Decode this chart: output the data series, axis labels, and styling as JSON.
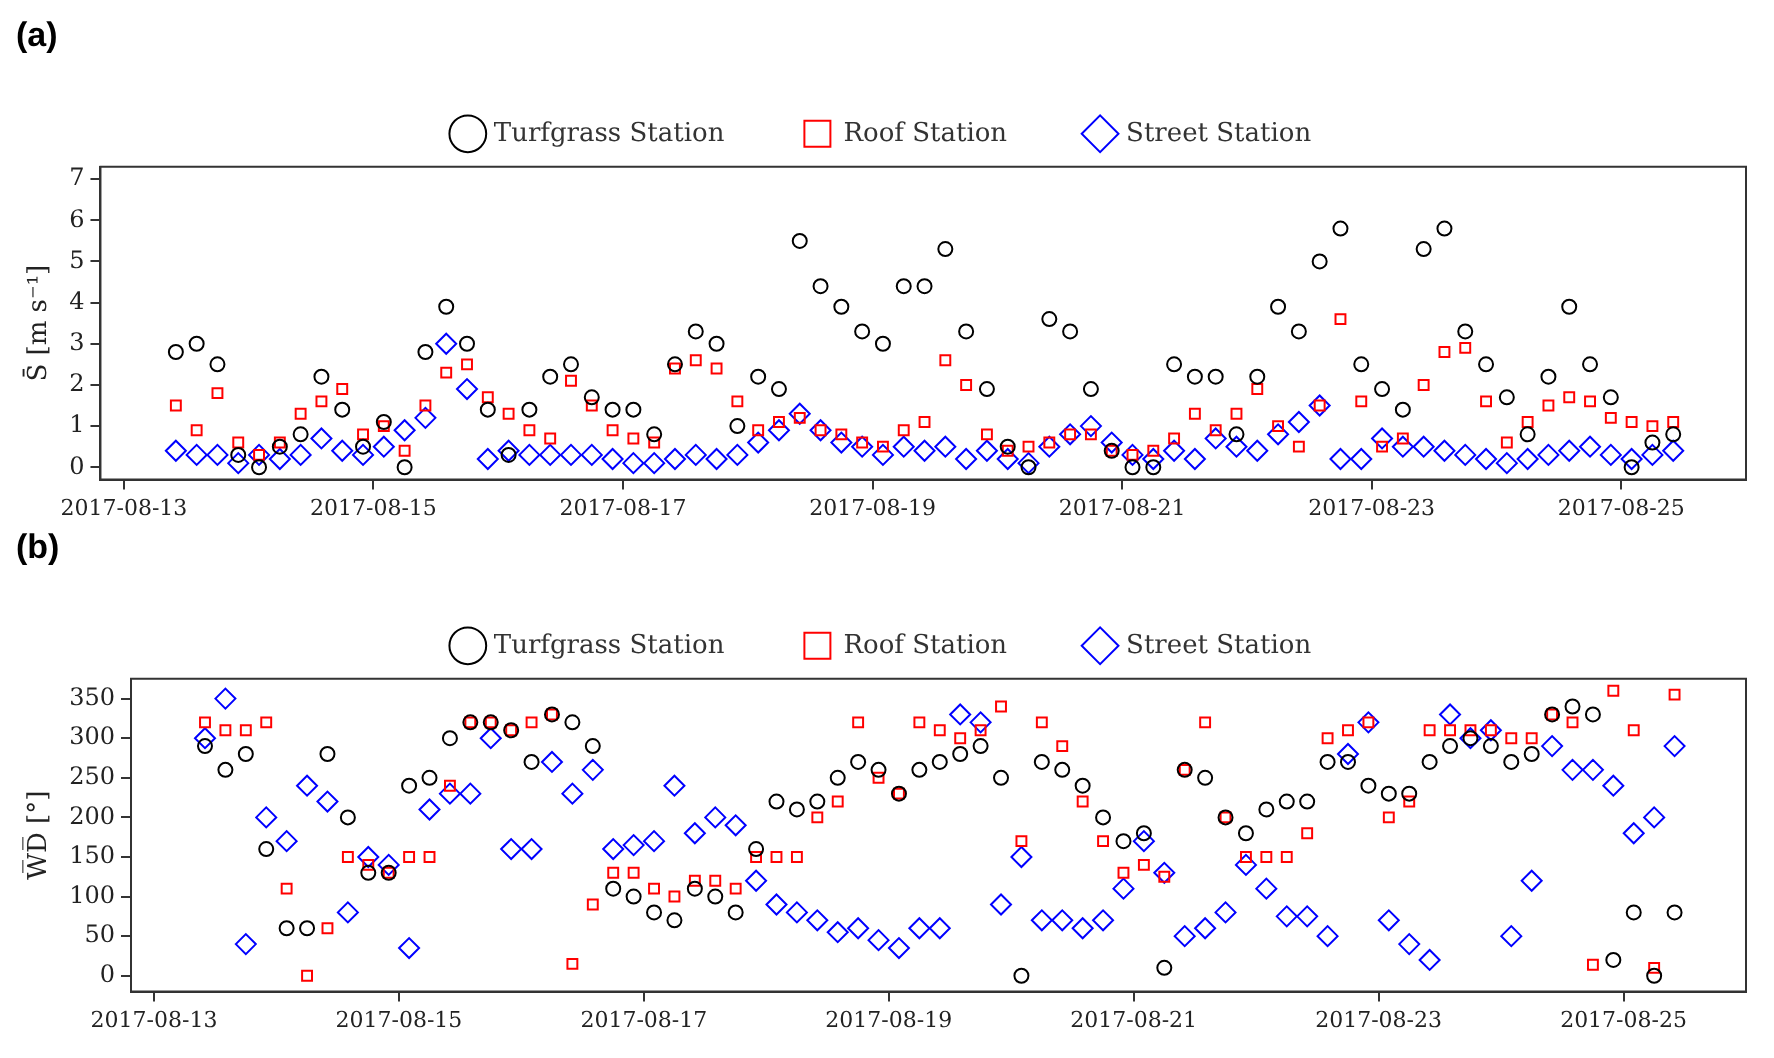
{
  "chart_data": [
    {
      "type": "scatter",
      "title": "(a)",
      "ylabel": "S̄ [m s⁻¹]",
      "legend": "top",
      "grid": false,
      "x": [
        "2017-08-13T10:00",
        "2017-08-13T14:00",
        "2017-08-13T18:00",
        "2017-08-13T22:00",
        "2017-08-14T02:00",
        "2017-08-14T06:00",
        "2017-08-14T10:00",
        "2017-08-14T14:00",
        "2017-08-14T18:00",
        "2017-08-14T22:00",
        "2017-08-15T02:00",
        "2017-08-15T06:00",
        "2017-08-15T10:00",
        "2017-08-15T14:00",
        "2017-08-15T18:00",
        "2017-08-15T22:00",
        "2017-08-16T02:00",
        "2017-08-16T06:00",
        "2017-08-16T10:00",
        "2017-08-16T14:00",
        "2017-08-16T18:00",
        "2017-08-16T22:00",
        "2017-08-17T02:00",
        "2017-08-17T06:00",
        "2017-08-17T10:00",
        "2017-08-17T14:00",
        "2017-08-17T18:00",
        "2017-08-17T22:00",
        "2017-08-18T02:00",
        "2017-08-18T06:00",
        "2017-08-18T10:00",
        "2017-08-18T14:00",
        "2017-08-18T18:00",
        "2017-08-18T22:00",
        "2017-08-19T02:00",
        "2017-08-19T06:00",
        "2017-08-19T10:00",
        "2017-08-19T14:00",
        "2017-08-19T18:00",
        "2017-08-19T22:00",
        "2017-08-20T02:00",
        "2017-08-20T06:00",
        "2017-08-20T10:00",
        "2017-08-20T14:00",
        "2017-08-20T18:00",
        "2017-08-20T22:00",
        "2017-08-21T02:00",
        "2017-08-21T06:00",
        "2017-08-21T10:00",
        "2017-08-21T14:00",
        "2017-08-21T18:00",
        "2017-08-21T22:00",
        "2017-08-22T02:00",
        "2017-08-22T06:00",
        "2017-08-22T10:00",
        "2017-08-22T14:00",
        "2017-08-22T18:00",
        "2017-08-22T22:00",
        "2017-08-23T02:00",
        "2017-08-23T06:00",
        "2017-08-23T10:00",
        "2017-08-23T14:00",
        "2017-08-23T18:00",
        "2017-08-23T22:00",
        "2017-08-24T02:00",
        "2017-08-24T06:00",
        "2017-08-24T10:00",
        "2017-08-24T14:00",
        "2017-08-24T18:00",
        "2017-08-24T22:00",
        "2017-08-25T02:00",
        "2017-08-25T06:00",
        "2017-08-25T10:00"
      ],
      "xlim": [
        "2017-08-12T19:30",
        "2017-08-26T00:00"
      ],
      "xticks": [
        "2017-08-13",
        "2017-08-15",
        "2017-08-17",
        "2017-08-19",
        "2017-08-21",
        "2017-08-23",
        "2017-08-25"
      ],
      "ylim": [
        -0.3,
        7.3
      ],
      "yticks": [
        0,
        1,
        2,
        3,
        4,
        5,
        6,
        7
      ],
      "series": [
        {
          "name": "Turfgrass Station",
          "color": "#000000",
          "marker": "circle",
          "values": [
            2.8,
            3.0,
            2.5,
            0.3,
            0.0,
            0.5,
            0.8,
            2.2,
            1.4,
            0.5,
            1.1,
            0.0,
            2.8,
            3.9,
            3.0,
            1.4,
            0.3,
            1.4,
            2.2,
            2.5,
            1.7,
            1.4,
            1.4,
            0.8,
            2.5,
            3.3,
            3.0,
            1.0,
            2.2,
            1.9,
            5.5,
            4.4,
            3.9,
            3.3,
            3.0,
            4.4,
            4.4,
            5.3,
            3.3,
            1.9,
            0.5,
            0.0,
            3.6,
            3.3,
            1.9,
            0.4,
            0.0,
            0.0,
            2.5,
            2.2,
            2.2,
            0.8,
            2.2,
            3.9,
            3.3,
            5.0,
            5.8,
            2.5,
            1.9,
            1.4,
            5.3,
            5.8,
            3.3,
            2.5,
            1.7,
            0.8,
            2.2,
            3.9,
            2.5,
            1.7,
            0.0,
            0.6,
            0.8
          ]
        },
        {
          "name": "Roof Station",
          "color": "#ff0000",
          "marker": "square",
          "values": [
            1.5,
            0.9,
            1.8,
            0.6,
            0.3,
            0.6,
            1.3,
            1.6,
            1.9,
            0.8,
            1.0,
            0.4,
            1.5,
            2.3,
            2.5,
            1.7,
            1.3,
            0.9,
            0.7,
            2.1,
            1.5,
            0.9,
            0.7,
            0.6,
            2.4,
            2.6,
            2.4,
            1.6,
            0.9,
            1.1,
            1.2,
            0.9,
            0.8,
            0.6,
            0.5,
            0.9,
            1.1,
            2.6,
            2.0,
            0.8,
            0.4,
            0.5,
            0.6,
            0.8,
            0.8,
            0.4,
            0.3,
            0.4,
            0.7,
            1.3,
            0.9,
            1.3,
            1.9,
            1.0,
            0.5,
            1.5,
            3.6,
            1.6,
            0.5,
            0.7,
            2.0,
            2.8,
            2.9,
            1.6,
            0.6,
            1.1,
            1.5,
            1.7,
            1.6,
            1.2,
            1.1,
            1.0,
            1.1
          ]
        },
        {
          "name": "Street Station",
          "color": "#0000ff",
          "marker": "diamond",
          "values": [
            0.4,
            0.3,
            0.3,
            0.1,
            0.3,
            0.2,
            0.3,
            0.7,
            0.4,
            0.3,
            0.5,
            0.9,
            1.2,
            3.0,
            1.9,
            0.2,
            0.4,
            0.3,
            0.3,
            0.3,
            0.3,
            0.2,
            0.1,
            0.1,
            0.2,
            0.3,
            0.2,
            0.3,
            0.6,
            0.9,
            1.3,
            0.9,
            0.6,
            0.5,
            0.3,
            0.5,
            0.4,
            0.5,
            0.2,
            0.4,
            0.2,
            0.1,
            0.5,
            0.8,
            1.0,
            0.6,
            0.3,
            0.2,
            0.4,
            0.2,
            0.7,
            0.5,
            0.4,
            0.8,
            1.1,
            1.5,
            0.2,
            0.2,
            0.7,
            0.5,
            0.5,
            0.4,
            0.3,
            0.2,
            0.1,
            0.2,
            0.3,
            0.4,
            0.5,
            0.3,
            0.2,
            0.3,
            0.4
          ]
        }
      ]
    },
    {
      "type": "scatter",
      "title": "(b)",
      "ylabel": "W̅D̅ [°]",
      "legend": "top",
      "grid": false,
      "x": [
        "2017-08-13T10:00",
        "2017-08-13T14:00",
        "2017-08-13T18:00",
        "2017-08-13T22:00",
        "2017-08-14T02:00",
        "2017-08-14T06:00",
        "2017-08-14T10:00",
        "2017-08-14T14:00",
        "2017-08-14T18:00",
        "2017-08-14T22:00",
        "2017-08-15T02:00",
        "2017-08-15T06:00",
        "2017-08-15T10:00",
        "2017-08-15T14:00",
        "2017-08-15T18:00",
        "2017-08-15T22:00",
        "2017-08-16T02:00",
        "2017-08-16T06:00",
        "2017-08-16T10:00",
        "2017-08-16T14:00",
        "2017-08-16T18:00",
        "2017-08-16T22:00",
        "2017-08-17T02:00",
        "2017-08-17T06:00",
        "2017-08-17T10:00",
        "2017-08-17T14:00",
        "2017-08-17T18:00",
        "2017-08-17T22:00",
        "2017-08-18T02:00",
        "2017-08-18T06:00",
        "2017-08-18T10:00",
        "2017-08-18T14:00",
        "2017-08-18T18:00",
        "2017-08-18T22:00",
        "2017-08-19T02:00",
        "2017-08-19T06:00",
        "2017-08-19T10:00",
        "2017-08-19T14:00",
        "2017-08-19T18:00",
        "2017-08-19T22:00",
        "2017-08-20T02:00",
        "2017-08-20T06:00",
        "2017-08-20T10:00",
        "2017-08-20T14:00",
        "2017-08-20T18:00",
        "2017-08-20T22:00",
        "2017-08-21T02:00",
        "2017-08-21T06:00",
        "2017-08-21T10:00",
        "2017-08-21T14:00",
        "2017-08-21T18:00",
        "2017-08-21T22:00",
        "2017-08-22T02:00",
        "2017-08-22T06:00",
        "2017-08-22T10:00",
        "2017-08-22T14:00",
        "2017-08-22T18:00",
        "2017-08-22T22:00",
        "2017-08-23T02:00",
        "2017-08-23T06:00",
        "2017-08-23T10:00",
        "2017-08-23T14:00",
        "2017-08-23T18:00",
        "2017-08-23T22:00",
        "2017-08-24T02:00",
        "2017-08-24T06:00",
        "2017-08-24T10:00",
        "2017-08-24T14:00",
        "2017-08-24T18:00",
        "2017-08-24T22:00",
        "2017-08-25T02:00",
        "2017-08-25T06:00",
        "2017-08-25T10:00"
      ],
      "xlim": [
        "2017-08-12T19:30",
        "2017-08-26T00:00"
      ],
      "xticks": [
        "2017-08-13",
        "2017-08-15",
        "2017-08-17",
        "2017-08-19",
        "2017-08-21",
        "2017-08-23",
        "2017-08-25"
      ],
      "ylim": [
        -20,
        375
      ],
      "yticks": [
        0,
        50,
        100,
        150,
        200,
        250,
        300,
        350
      ],
      "series": [
        {
          "name": "Turfgrass Station",
          "color": "#000000",
          "marker": "circle",
          "values": [
            290,
            260,
            280,
            160,
            60,
            60,
            280,
            200,
            130,
            130,
            240,
            250,
            300,
            320,
            320,
            310,
            270,
            330,
            320,
            290,
            110,
            100,
            80,
            70,
            110,
            100,
            80,
            160,
            220,
            210,
            220,
            250,
            270,
            260,
            230,
            260,
            270,
            280,
            290,
            250,
            0,
            270,
            260,
            240,
            200,
            170,
            180,
            10,
            260,
            250,
            200,
            180,
            210,
            220,
            220,
            270,
            270,
            240,
            230,
            230,
            270,
            290,
            300,
            290,
            270,
            280,
            330,
            340,
            330,
            20,
            80,
            0,
            80
          ]
        },
        {
          "name": "Roof Station",
          "color": "#ff0000",
          "marker": "square",
          "values": [
            320,
            310,
            310,
            320,
            110,
            0,
            60,
            150,
            140,
            130,
            150,
            150,
            240,
            320,
            320,
            310,
            320,
            330,
            15,
            90,
            130,
            130,
            110,
            100,
            120,
            120,
            110,
            150,
            150,
            150,
            200,
            220,
            320,
            250,
            230,
            320,
            310,
            300,
            310,
            340,
            170,
            320,
            290,
            220,
            170,
            130,
            140,
            125,
            260,
            320,
            200,
            150,
            150,
            150,
            180,
            300,
            310,
            320,
            200,
            220,
            310,
            310,
            310,
            310,
            300,
            300,
            330,
            320,
            14,
            360,
            310,
            10,
            355
          ]
        },
        {
          "name": "Street Station",
          "color": "#0000ff",
          "marker": "diamond",
          "values": [
            300,
            350,
            40,
            200,
            170,
            240,
            220,
            80,
            150,
            140,
            35,
            210,
            230,
            230,
            300,
            160,
            160,
            270,
            230,
            260,
            160,
            165,
            170,
            240,
            180,
            200,
            190,
            120,
            90,
            80,
            70,
            55,
            60,
            45,
            35,
            60,
            60,
            330,
            320,
            90,
            150,
            70,
            70,
            60,
            70,
            110,
            170,
            130,
            50,
            60,
            80,
            140,
            110,
            75,
            75,
            50,
            280,
            320,
            70,
            40,
            20,
            330,
            300,
            310,
            50,
            120,
            290,
            260,
            260,
            240,
            180,
            200,
            290
          ]
        }
      ]
    }
  ]
}
